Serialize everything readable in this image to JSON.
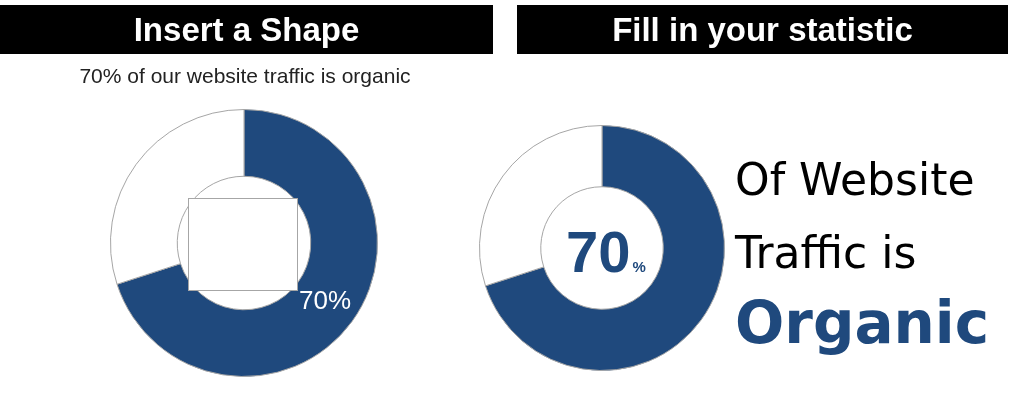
{
  "chart_data": [
    {
      "type": "donut",
      "title": "Insert a Shape",
      "subtitle": "70% of our website traffic is organic",
      "categories": [
        null,
        null
      ],
      "values": [
        70,
        30
      ],
      "colors": [
        "#1f497d",
        "#ffffff"
      ],
      "value_labels": [
        "70%",
        null
      ]
    },
    {
      "type": "donut",
      "title": "Fill in your statistic",
      "categories": [
        null,
        null
      ],
      "values": [
        70,
        30
      ],
      "colors": [
        "#1f497d",
        "#ffffff"
      ],
      "value_labels": [
        "70%",
        null
      ],
      "annotations": [
        "Of Website Traffic is",
        "Organic"
      ]
    }
  ]
}
